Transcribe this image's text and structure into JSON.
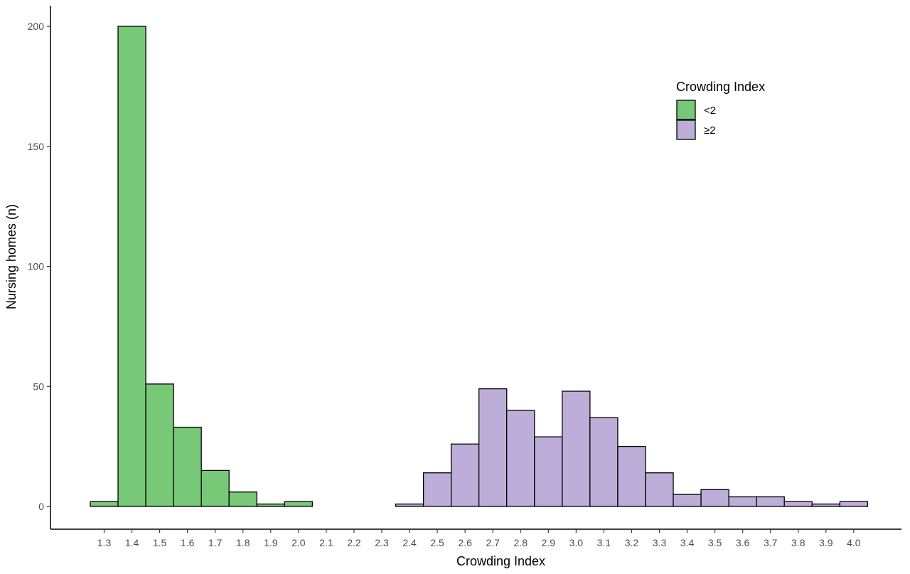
{
  "chart_data": {
    "type": "bar",
    "subtype": "histogram",
    "xlabel": "Crowding Index",
    "ylabel": "Nursing homes (n)",
    "ylim": [
      0,
      210
    ],
    "yticks": [
      0,
      50,
      100,
      150,
      200
    ],
    "xlim": [
      1.2,
      4.2
    ],
    "bin_width": 0.1,
    "xticks": [
      "1.3",
      "1.4",
      "1.5",
      "1.6",
      "1.7",
      "1.8",
      "1.9",
      "2.0",
      "2.1",
      "2.2",
      "2.3",
      "2.4",
      "2.5",
      "2.6",
      "2.7",
      "2.8",
      "2.9",
      "3.0",
      "3.1",
      "3.2",
      "3.3",
      "3.4",
      "3.5",
      "3.6",
      "3.7",
      "3.8",
      "3.9",
      "4.0"
    ],
    "grid": false,
    "legend": {
      "title": "Crowding Index",
      "position": "top-right",
      "items": [
        {
          "label": "<2",
          "color": "#77c877"
        },
        {
          "label": "≥2",
          "color": "#bcaed8"
        }
      ]
    },
    "series": [
      {
        "label": "<2",
        "color": "#77c877",
        "bins": [
          {
            "x": 1.3,
            "count": 2
          },
          {
            "x": 1.4,
            "count": 200
          },
          {
            "x": 1.5,
            "count": 51
          },
          {
            "x": 1.6,
            "count": 33
          },
          {
            "x": 1.7,
            "count": 15
          },
          {
            "x": 1.8,
            "count": 6
          },
          {
            "x": 1.9,
            "count": 1
          },
          {
            "x": 2.0,
            "count": 2
          }
        ]
      },
      {
        "label": "≥2",
        "color": "#bcaed8",
        "bins": [
          {
            "x": 2.1,
            "count": 0
          },
          {
            "x": 2.2,
            "count": 0
          },
          {
            "x": 2.3,
            "count": 0
          },
          {
            "x": 2.4,
            "count": 1
          },
          {
            "x": 2.5,
            "count": 14
          },
          {
            "x": 2.6,
            "count": 26
          },
          {
            "x": 2.7,
            "count": 49
          },
          {
            "x": 2.8,
            "count": 40
          },
          {
            "x": 2.9,
            "count": 29
          },
          {
            "x": 3.0,
            "count": 48
          },
          {
            "x": 3.1,
            "count": 37
          },
          {
            "x": 3.2,
            "count": 25
          },
          {
            "x": 3.3,
            "count": 14
          },
          {
            "x": 3.4,
            "count": 5
          },
          {
            "x": 3.5,
            "count": 7
          },
          {
            "x": 3.6,
            "count": 4
          },
          {
            "x": 3.7,
            "count": 4
          },
          {
            "x": 3.8,
            "count": 2
          },
          {
            "x": 3.9,
            "count": 1
          },
          {
            "x": 4.0,
            "count": 2
          }
        ]
      }
    ]
  }
}
